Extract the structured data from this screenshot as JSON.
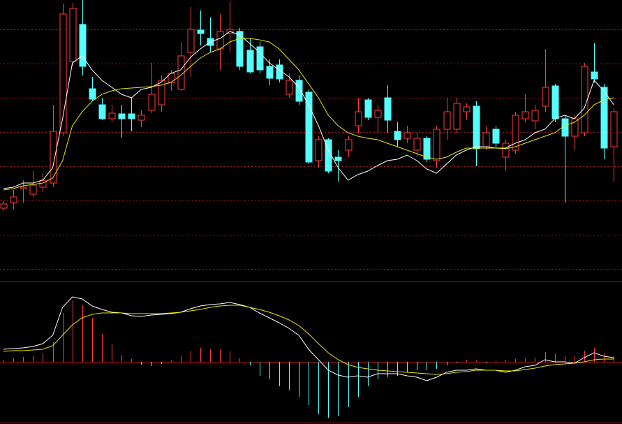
{
  "chart_data": [
    {
      "type": "candlestick",
      "grid": true,
      "up_color": "#ff3c3c",
      "down_color": "#54ffff",
      "grid_color": "#a01818",
      "ylim": [
        31,
        434
      ],
      "yticks": [
        49,
        98,
        147,
        196,
        245,
        294,
        343,
        392
      ],
      "open": [
        136,
        144,
        164,
        156,
        166,
        172,
        244,
        346,
        399,
        307,
        284,
        264,
        271,
        271,
        262,
        276,
        284,
        316,
        306,
        359,
        391,
        379,
        364,
        386,
        389,
        362,
        367,
        339,
        341,
        299,
        319,
        302,
        204,
        234,
        209,
        219,
        254,
        291,
        266,
        294,
        246,
        236,
        219,
        236,
        204,
        249,
        249,
        274,
        282,
        224,
        249,
        209,
        219,
        264,
        261,
        282,
        311,
        264,
        239,
        244,
        331,
        309,
        224
      ],
      "close": [
        142,
        152,
        166,
        169,
        176,
        246,
        414,
        422,
        339,
        292,
        264,
        272,
        264,
        264,
        269,
        299,
        319,
        329,
        354,
        392,
        386,
        369,
        389,
        392,
        339,
        331,
        334,
        322,
        321,
        319,
        289,
        202,
        234,
        189,
        204,
        234,
        274,
        266,
        276,
        262,
        234,
        244,
        236,
        206,
        249,
        274,
        286,
        281,
        221,
        244,
        229,
        229,
        269,
        274,
        276,
        309,
        264,
        239,
        264,
        339,
        321,
        222,
        274
      ],
      "high": [
        146,
        162,
        176,
        189,
        186,
        284,
        429,
        430,
        434,
        324,
        294,
        284,
        284,
        294,
        276,
        344,
        326,
        334,
        374,
        424,
        419,
        409,
        414,
        432,
        394,
        379,
        374,
        349,
        349,
        329,
        326,
        306,
        239,
        236,
        219,
        239,
        294,
        294,
        284,
        312,
        259,
        254,
        244,
        239,
        254,
        294,
        294,
        286,
        289,
        254,
        254,
        234,
        274,
        299,
        284,
        364,
        314,
        269,
        269,
        344,
        372,
        314,
        279
      ],
      "low": [
        132,
        134,
        144,
        152,
        159,
        166,
        239,
        339,
        326,
        289,
        262,
        259,
        237,
        246,
        252,
        272,
        274,
        304,
        304,
        324,
        369,
        359,
        334,
        359,
        334,
        329,
        329,
        312,
        316,
        294,
        284,
        199,
        194,
        186,
        174,
        209,
        244,
        262,
        244,
        244,
        224,
        229,
        209,
        202,
        194,
        234,
        244,
        262,
        196,
        219,
        222,
        189,
        214,
        259,
        249,
        274,
        259,
        144,
        219,
        239,
        316,
        206,
        174
      ],
      "series": [
        {
          "color": "#ffffff",
          "values": [
            164,
            166,
            172,
            172,
            176,
            194,
            264,
            344,
            354,
            334,
            319,
            309,
            299,
            294,
            306,
            309,
            316,
            329,
            334,
            352,
            364,
            374,
            379,
            389,
            384,
            372,
            359,
            344,
            334,
            324,
            309,
            284,
            254,
            219,
            194,
            176,
            184,
            189,
            197,
            204,
            206,
            212,
            204,
            192,
            186,
            199,
            212,
            219,
            224,
            224,
            222,
            222,
            229,
            234,
            244,
            249,
            264,
            269,
            264,
            279,
            319,
            304,
            284
          ]
        },
        {
          "color": "#e8e800",
          "values": [
            162,
            164,
            168,
            170,
            172,
            179,
            204,
            254,
            274,
            289,
            299,
            304,
            307,
            308,
            309,
            310,
            312,
            316,
            326,
            339,
            351,
            359,
            364,
            374,
            379,
            379,
            377,
            374,
            364,
            349,
            334,
            314,
            294,
            269,
            254,
            244,
            239,
            236,
            234,
            229,
            224,
            219,
            214,
            209,
            206,
            209,
            216,
            222,
            222,
            222,
            222,
            221,
            224,
            229,
            234,
            239,
            244,
            254,
            259,
            269,
            284,
            291,
            294
          ]
        }
      ]
    },
    {
      "type": "macd",
      "up_color": "#ff3c3c",
      "down_color": "#54ffff",
      "ylim": [
        -87,
        113
      ],
      "yticks": [
        0
      ],
      "values": [
        3,
        5,
        7,
        8,
        12,
        28,
        70,
        88,
        81,
        63,
        40,
        26,
        10,
        4,
        -4,
        -6,
        -3,
        2,
        8,
        15,
        20,
        18,
        18,
        15,
        5,
        -5,
        -20,
        -25,
        -35,
        -40,
        -50,
        -62,
        -75,
        -80,
        -78,
        -65,
        -50,
        -35,
        -25,
        -22,
        -20,
        -15,
        -12,
        -12,
        -10,
        -5,
        -2,
        3,
        2,
        -2,
        2,
        3,
        4,
        5,
        6,
        14,
        12,
        8,
        8,
        16,
        20,
        12,
        8
      ],
      "series": [
        {
          "color": "#ffffff",
          "values": [
            18,
            19,
            20,
            22,
            26,
            38,
            78,
            93,
            90,
            80,
            75,
            71,
            70,
            66,
            65,
            67,
            68,
            69,
            71,
            76,
            80,
            82,
            83,
            85,
            82,
            78,
            70,
            63,
            56,
            48,
            38,
            18,
            3,
            -12,
            -19,
            -22,
            -20,
            -22,
            -17,
            -17,
            -17,
            -20,
            -22,
            -27,
            -22,
            -15,
            -12,
            -12,
            -10,
            -12,
            -12,
            -15,
            -12,
            -7,
            -5,
            3,
            0,
            0,
            -2,
            6,
            13,
            8,
            6
          ]
        },
        {
          "color": "#e8e800",
          "values": [
            15,
            16,
            16,
            17,
            18,
            23,
            38,
            53,
            63,
            68,
            70,
            70,
            70,
            69,
            69,
            69,
            69,
            70,
            71,
            73,
            75,
            78,
            80,
            81,
            81,
            78,
            75,
            71,
            66,
            60,
            52,
            40,
            26,
            13,
            3,
            -4,
            -8,
            -10,
            -12,
            -13,
            -14,
            -15,
            -16,
            -17,
            -18,
            -17,
            -15,
            -14,
            -12,
            -12,
            -12,
            -13,
            -13,
            -11,
            -9,
            -6,
            -4,
            -3,
            -2,
            0,
            3,
            4,
            4
          ]
        }
      ]
    }
  ]
}
